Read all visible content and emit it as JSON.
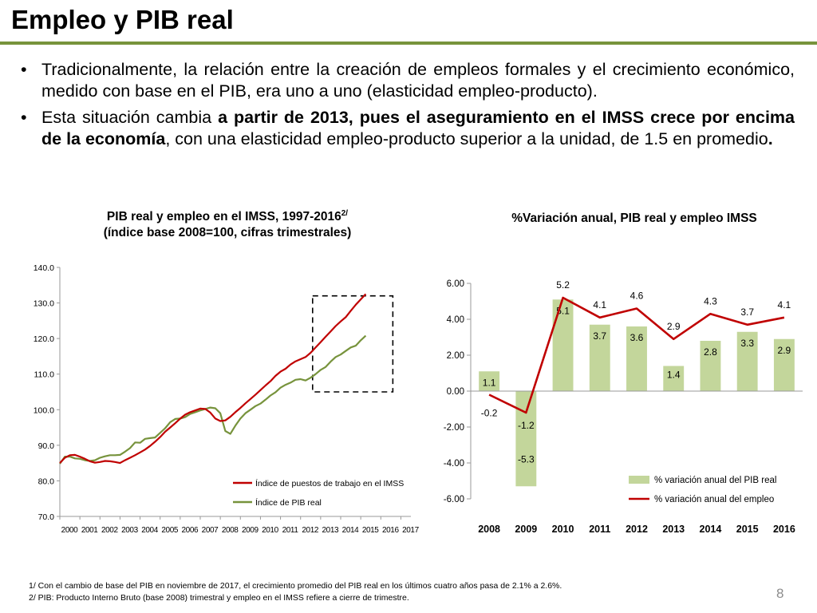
{
  "slide": {
    "title": "Empleo y PIB real",
    "bullet1": "Tradicionalmente, la relación entre la creación de empleos formales y el crecimiento económico, medido con base en el PIB, era uno a uno (elasticidad empleo-producto).",
    "bullet2": {
      "part1": "Esta situación cambia ",
      "part2_bold": "a partir de 2013, pues el aseguramiento en el IMSS crece por encima de la economía",
      "part3": ", con una elasticidad empleo-producto superior a la unidad, de 1.5 en promedio",
      "part4_bold": "."
    },
    "footnote1": "1/ Con el cambio de base del PIB en noviembre de 2017, el crecimiento promedio del PIB real en los últimos cuatro años pasa de 2.1% a 2.6%.",
    "footnote2": "2/ PIB: Producto Interno Bruto (base 2008) trimestral y empleo en el IMSS refiere a cierre de trimestre.",
    "page_number": "8",
    "colors": {
      "accent": "#77933c",
      "employment": "#c00000",
      "gdp": "#77933c",
      "bar": "#c3d69b"
    }
  },
  "chart_data": [
    {
      "type": "line",
      "title_line1": "PIB real y empleo en el IMSS, 1997-2016",
      "title_sup": "2/",
      "title_line2": "(índice base 2008=100, cifras trimestrales)",
      "ylim": [
        70,
        140
      ],
      "ytick_labels": [
        "70.0",
        "80.0",
        "90.0",
        "100.0",
        "110.0",
        "120.0",
        "130.0",
        "140.0"
      ],
      "xtick_labels": [
        "2000",
        "2001",
        "2002",
        "2003",
        "2004",
        "2005",
        "2006",
        "2007",
        "2008",
        "2009",
        "2010",
        "2011",
        "2012",
        "2013",
        "2014",
        "2015",
        "2016",
        "2017"
      ],
      "legend_placement": "bottom-right",
      "highlight_box": {
        "x_from": 2012.6,
        "x_to": 2016.6,
        "y_from": 105,
        "y_to": 132
      },
      "series": [
        {
          "name": "Índice de puestos de trabajo en el IMSS",
          "color": "#c00000",
          "points": [
            [
              2000.0,
              85.0
            ],
            [
              2000.25,
              86.5
            ],
            [
              2000.5,
              87.2
            ],
            [
              2000.75,
              87.3
            ],
            [
              2001.0,
              86.8
            ],
            [
              2001.25,
              86.2
            ],
            [
              2001.5,
              85.5
            ],
            [
              2001.75,
              85.1
            ],
            [
              2002.0,
              85.3
            ],
            [
              2002.25,
              85.6
            ],
            [
              2002.5,
              85.5
            ],
            [
              2002.75,
              85.3
            ],
            [
              2003.0,
              85.0
            ],
            [
              2003.25,
              85.8
            ],
            [
              2003.5,
              86.5
            ],
            [
              2003.75,
              87.2
            ],
            [
              2004.0,
              88.0
            ],
            [
              2004.25,
              88.8
            ],
            [
              2004.5,
              89.8
            ],
            [
              2004.75,
              91.0
            ],
            [
              2005.0,
              92.3
            ],
            [
              2005.25,
              93.8
            ],
            [
              2005.5,
              95.0
            ],
            [
              2005.75,
              96.2
            ],
            [
              2006.0,
              97.5
            ],
            [
              2006.25,
              98.6
            ],
            [
              2006.5,
              99.3
            ],
            [
              2006.75,
              99.8
            ],
            [
              2007.0,
              100.3
            ],
            [
              2007.25,
              100.2
            ],
            [
              2007.5,
              99.2
            ],
            [
              2007.75,
              97.5
            ],
            [
              2008.0,
              96.8
            ],
            [
              2008.25,
              97.0
            ],
            [
              2008.5,
              98.0
            ],
            [
              2008.75,
              99.3
            ],
            [
              2009.0,
              100.5
            ],
            [
              2009.25,
              101.8
            ],
            [
              2009.5,
              103.0
            ],
            [
              2009.75,
              104.2
            ],
            [
              2010.0,
              105.5
            ],
            [
              2010.25,
              106.8
            ],
            [
              2010.5,
              108.0
            ],
            [
              2010.75,
              109.5
            ],
            [
              2011.0,
              110.7
            ],
            [
              2011.25,
              111.5
            ],
            [
              2011.5,
              112.7
            ],
            [
              2011.75,
              113.6
            ],
            [
              2012.0,
              114.2
            ],
            [
              2012.25,
              114.8
            ],
            [
              2012.5,
              116.0
            ],
            [
              2012.75,
              117.5
            ],
            [
              2013.0,
              119.0
            ],
            [
              2013.25,
              120.5
            ],
            [
              2013.5,
              122.0
            ],
            [
              2013.75,
              123.5
            ],
            [
              2014.0,
              124.8
            ],
            [
              2014.25,
              126.0
            ],
            [
              2014.5,
              127.8
            ],
            [
              2014.75,
              129.5
            ],
            [
              2015.0,
              131.0
            ],
            [
              2015.25,
              132.5
            ]
          ]
        },
        {
          "name": "Índice de PIB real",
          "color": "#77933c",
          "points": [
            [
              2000.0,
              84.8
            ],
            [
              2000.25,
              86.8
            ],
            [
              2000.5,
              86.8
            ],
            [
              2000.75,
              86.3
            ],
            [
              2001.0,
              86.2
            ],
            [
              2001.25,
              85.8
            ],
            [
              2001.5,
              85.6
            ],
            [
              2001.75,
              85.8
            ],
            [
              2002.0,
              86.5
            ],
            [
              2002.25,
              86.9
            ],
            [
              2002.5,
              87.2
            ],
            [
              2002.75,
              87.2
            ],
            [
              2003.0,
              87.3
            ],
            [
              2003.25,
              88.2
            ],
            [
              2003.5,
              89.2
            ],
            [
              2003.75,
              90.8
            ],
            [
              2004.0,
              90.7
            ],
            [
              2004.25,
              91.8
            ],
            [
              2004.5,
              92.0
            ],
            [
              2004.75,
              92.2
            ],
            [
              2005.0,
              93.5
            ],
            [
              2005.25,
              94.8
            ],
            [
              2005.5,
              96.5
            ],
            [
              2005.75,
              97.4
            ],
            [
              2006.0,
              97.5
            ],
            [
              2006.25,
              97.9
            ],
            [
              2006.5,
              98.8
            ],
            [
              2006.75,
              99.3
            ],
            [
              2007.0,
              99.8
            ],
            [
              2007.25,
              100.2
            ],
            [
              2007.5,
              100.6
            ],
            [
              2007.75,
              100.4
            ],
            [
              2008.0,
              99.0
            ],
            [
              2008.25,
              94.0
            ],
            [
              2008.5,
              93.2
            ],
            [
              2008.75,
              95.5
            ],
            [
              2009.0,
              97.5
            ],
            [
              2009.25,
              99.0
            ],
            [
              2009.5,
              100.0
            ],
            [
              2009.75,
              101.0
            ],
            [
              2010.0,
              101.7
            ],
            [
              2010.25,
              102.8
            ],
            [
              2010.5,
              104.0
            ],
            [
              2010.75,
              104.9
            ],
            [
              2011.0,
              106.2
            ],
            [
              2011.25,
              107.0
            ],
            [
              2011.5,
              107.6
            ],
            [
              2011.75,
              108.4
            ],
            [
              2012.0,
              108.6
            ],
            [
              2012.25,
              108.2
            ],
            [
              2012.5,
              109.0
            ],
            [
              2012.75,
              110.0
            ],
            [
              2013.0,
              111.2
            ],
            [
              2013.25,
              112.0
            ],
            [
              2013.5,
              113.5
            ],
            [
              2013.75,
              114.8
            ],
            [
              2014.0,
              115.5
            ],
            [
              2014.25,
              116.5
            ],
            [
              2014.5,
              117.5
            ],
            [
              2014.75,
              118.0
            ],
            [
              2015.0,
              119.5
            ],
            [
              2015.25,
              120.8
            ]
          ]
        }
      ]
    },
    {
      "type": "bar",
      "title": "%Variación anual, PIB real y empleo IMSS",
      "categories": [
        "2008",
        "2009",
        "2010",
        "2011",
        "2012",
        "2013",
        "2014",
        "2015",
        "2016"
      ],
      "ylim": [
        -6,
        6
      ],
      "ytick_labels": [
        "-6.00",
        "-4.00",
        "-2.00",
        "0.00",
        "2.00",
        "4.00",
        "6.00"
      ],
      "legend_placement": "bottom-right",
      "series": [
        {
          "name": "% variación anual del PIB real",
          "kind": "bar",
          "color": "#c3d69b",
          "values": [
            1.1,
            -5.3,
            5.1,
            3.7,
            3.6,
            1.4,
            2.8,
            3.3,
            2.9
          ],
          "labels": [
            "1.1",
            "-5.3",
            "5.1",
            "3.7",
            "3.6",
            "1.4",
            "2.8",
            "3.3",
            "2.9"
          ]
        },
        {
          "name": "% variación anual del empleo",
          "kind": "line",
          "color": "#c00000",
          "values": [
            -0.2,
            -1.2,
            5.2,
            4.1,
            4.6,
            2.9,
            4.3,
            3.7,
            4.1
          ],
          "labels": [
            "-0.2",
            "-1.2",
            "5.2",
            "4.1",
            "4.6",
            "2.9",
            "4.3",
            "3.7",
            "4.1"
          ]
        }
      ]
    }
  ]
}
